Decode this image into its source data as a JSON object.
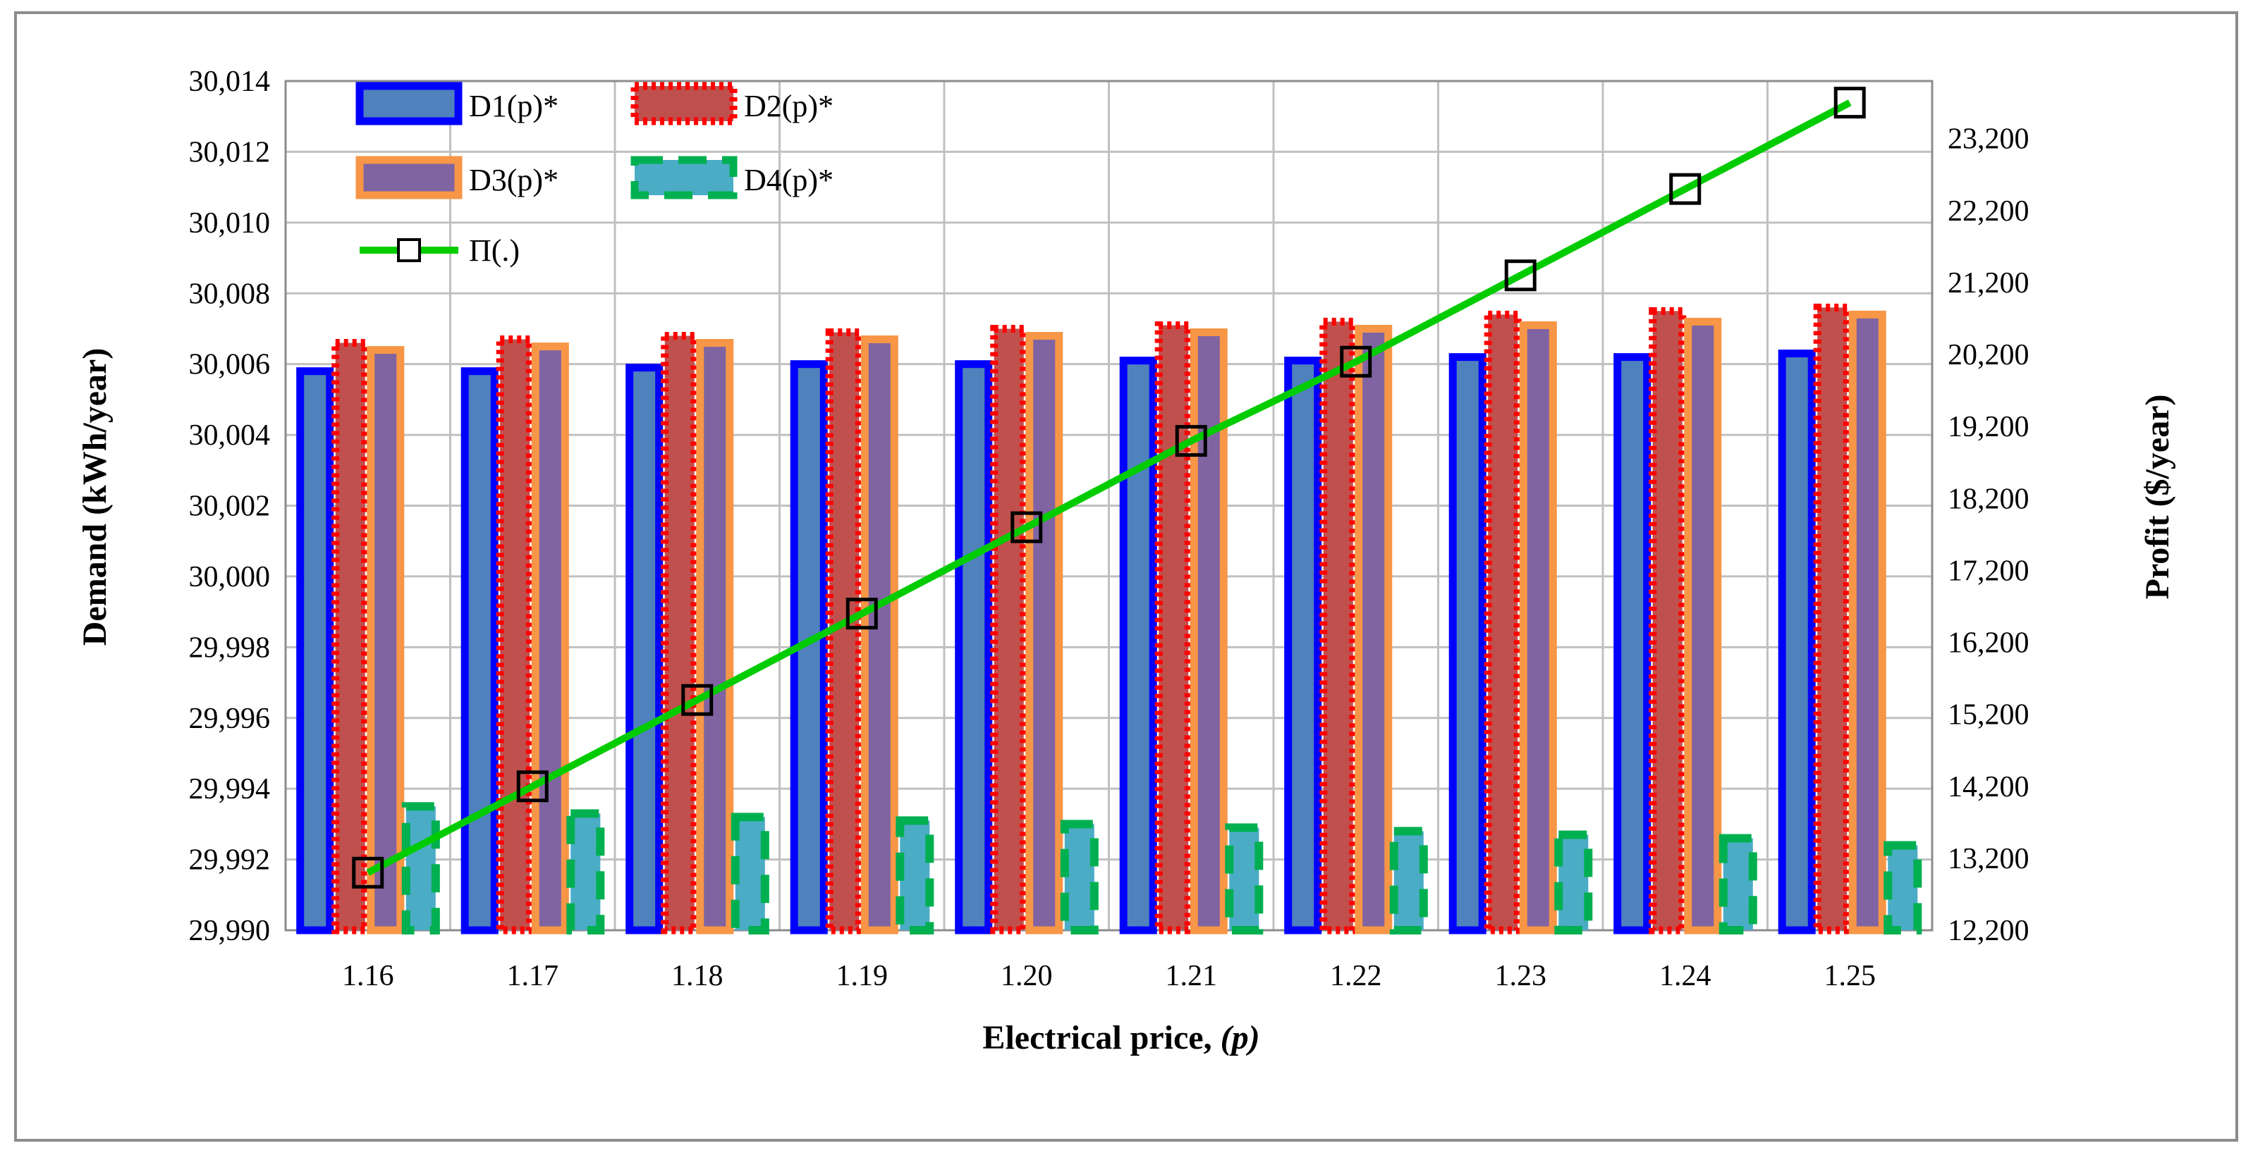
{
  "chart_data": {
    "type": "bar",
    "xlabel": "Electrical price, (p)",
    "xlabel_main": "Electrical price, ",
    "xlabel_var": "(p)",
    "ylabel": "Demand  (kWh/year)",
    "y2label": "Profit ($/year)",
    "categories": [
      "1.16",
      "1.17",
      "1.18",
      "1.19",
      "1.20",
      "1.21",
      "1.22",
      "1.23",
      "1.24",
      "1.25"
    ],
    "ylim": [
      29990,
      30014
    ],
    "y_ticks": [
      "29,990",
      "29,992",
      "29,994",
      "29,996",
      "29,998",
      "30,000",
      "30,002",
      "30,004",
      "30,006",
      "30,008",
      "30,010",
      "30,012",
      "30,014"
    ],
    "y2lim": [
      12200,
      24000
    ],
    "y2_ticks": [
      "12,200",
      "13,200",
      "14,200",
      "15,200",
      "16,200",
      "17,200",
      "18,200",
      "19,200",
      "20,200",
      "21,200",
      "22,200",
      "23,200"
    ],
    "grid": true,
    "legend_position": "top-left",
    "series": [
      {
        "name": "D1(p)*",
        "type": "bar",
        "axis": "left",
        "fill": "#4f81bd",
        "border": "#0000ff",
        "dash": "solid",
        "values": [
          30005.8,
          30005.8,
          30005.9,
          30006.0,
          30006.0,
          30006.1,
          30006.1,
          30006.2,
          30006.2,
          30006.3
        ]
      },
      {
        "name": "D2(p)*",
        "type": "bar",
        "axis": "left",
        "fill": "#c0504d",
        "border": "#ff0000",
        "dash": "dotted",
        "values": [
          30006.6,
          30006.7,
          30006.8,
          30006.9,
          30007.0,
          30007.1,
          30007.2,
          30007.4,
          30007.5,
          30007.6
        ]
      },
      {
        "name": "D3(p)*",
        "type": "bar",
        "axis": "left",
        "fill": "#8064a2",
        "border": "#f79646",
        "dash": "solid",
        "values": [
          30006.4,
          30006.5,
          30006.6,
          30006.7,
          30006.8,
          30006.9,
          30007.0,
          30007.1,
          30007.2,
          30007.4
        ]
      },
      {
        "name": "D4(p)*",
        "type": "bar",
        "axis": "left",
        "fill": "#4bacc6",
        "border": "#00b050",
        "dash": "dashed",
        "values": [
          29993.5,
          29993.3,
          29993.2,
          29993.1,
          29993.0,
          29992.9,
          29992.8,
          29992.7,
          29992.6,
          29992.4
        ]
      },
      {
        "name": "Π(.)",
        "type": "line",
        "axis": "right",
        "color": "#00cc00",
        "marker": "square",
        "values": [
          13000,
          14200,
          15400,
          16600,
          17800,
          19000,
          20100,
          21300,
          22500,
          23700
        ]
      }
    ]
  }
}
